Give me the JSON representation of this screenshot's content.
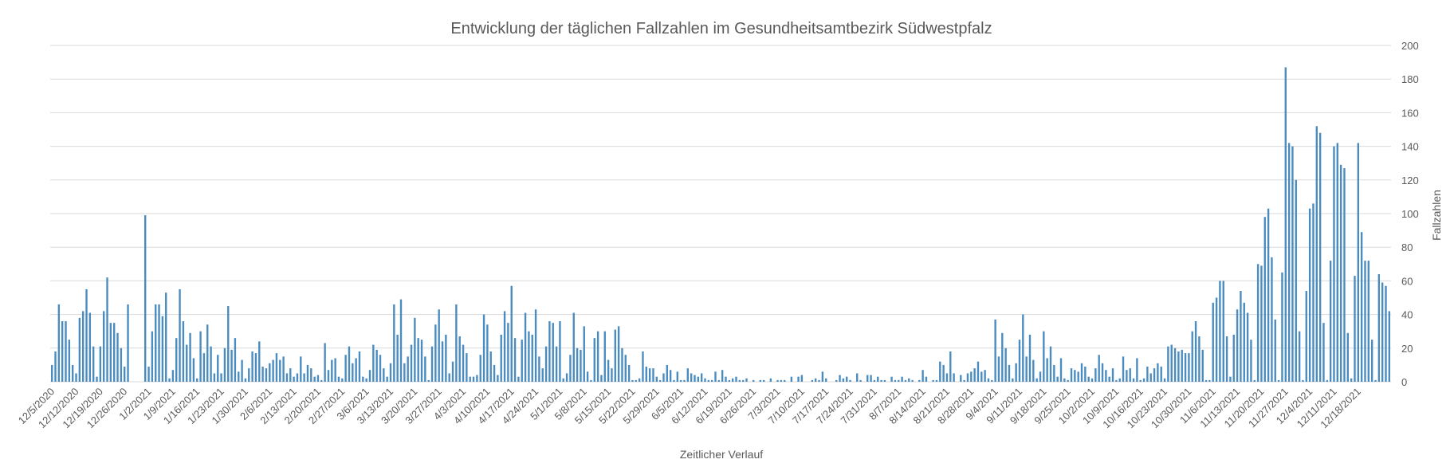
{
  "chart_data": {
    "type": "bar",
    "title": "Entwicklung der täglichen Fallzahlen im Gesundheitsamtbezirk Südwestpfalz",
    "xlabel": "Zeitlicher Verlauf",
    "ylabel": "Fallzahlen",
    "ylim": [
      0,
      200
    ],
    "yticks": [
      0,
      20,
      40,
      60,
      80,
      100,
      120,
      140,
      160,
      180,
      200
    ],
    "y_axis_side": "right",
    "grid": true,
    "bar_color": "#4a8cc0",
    "start_date": "12/5/2020",
    "x_tick_labels": [
      "12/5/2020",
      "12/12/2020",
      "12/19/2020",
      "12/26/2020",
      "1/2/2021",
      "1/9/2021",
      "1/16/2021",
      "1/23/2021",
      "1/30/2021",
      "2/6/2021",
      "2/13/2021",
      "2/20/2021",
      "2/27/2021",
      "3/6/2021",
      "3/13/2021",
      "3/20/2021",
      "3/27/2021",
      "4/3/2021",
      "4/10/2021",
      "4/17/2021",
      "4/24/2021",
      "5/1/2021",
      "5/8/2021",
      "5/15/2021",
      "5/22/2021",
      "5/29/2021",
      "6/5/2021",
      "6/12/2021",
      "6/19/2021",
      "6/26/2021",
      "7/3/2021",
      "7/10/2021",
      "7/17/2021",
      "7/24/2021",
      "7/31/2021",
      "8/7/2021",
      "8/14/2021",
      "8/21/2021",
      "8/28/2021",
      "9/4/2021",
      "9/11/2021",
      "9/18/2021",
      "9/25/2021",
      "10/2/2021",
      "10/9/2021",
      "10/16/2021",
      "10/23/2021",
      "10/30/2021",
      "11/6/2021",
      "11/13/2021",
      "11/20/2021",
      "11/27/2021",
      "12/4/2021",
      "12/11/2021",
      "12/18/2021"
    ],
    "values": [
      10,
      18,
      46,
      36,
      36,
      25,
      10,
      5,
      38,
      42,
      55,
      41,
      21,
      3,
      21,
      42,
      62,
      35,
      35,
      29,
      20,
      9,
      46,
      0,
      0,
      0,
      0,
      99,
      9,
      30,
      46,
      46,
      39,
      53,
      2,
      7,
      26,
      55,
      36,
      22,
      29,
      14,
      2,
      30,
      17,
      34,
      21,
      5,
      16,
      5,
      20,
      45,
      19,
      26,
      6,
      13,
      2,
      8,
      18,
      17,
      24,
      9,
      8,
      11,
      13,
      17,
      13,
      15,
      5,
      8,
      3,
      5,
      15,
      5,
      10,
      8,
      3,
      4,
      1,
      23,
      7,
      13,
      14,
      3,
      2,
      16,
      21,
      11,
      14,
      18,
      3,
      2,
      7,
      22,
      19,
      16,
      8,
      3,
      11,
      46,
      28,
      49,
      11,
      15,
      22,
      38,
      26,
      25,
      15,
      1,
      21,
      34,
      43,
      24,
      28,
      5,
      12,
      46,
      27,
      22,
      17,
      3,
      3,
      4,
      16,
      40,
      34,
      18,
      10,
      4,
      28,
      42,
      35,
      57,
      26,
      3,
      25,
      41,
      30,
      28,
      43,
      15,
      8,
      21,
      36,
      35,
      21,
      36,
      2,
      5,
      16,
      41,
      20,
      19,
      33,
      6,
      1,
      26,
      30,
      4,
      30,
      13,
      8,
      31,
      33,
      20,
      16,
      10,
      1,
      1,
      2,
      18,
      9,
      8,
      8,
      3,
      1,
      5,
      10,
      7,
      1,
      6,
      1,
      1,
      8,
      5,
      4,
      3,
      5,
      2,
      1,
      1,
      6,
      1,
      7,
      3,
      1,
      2,
      3,
      1,
      1,
      2,
      0,
      1,
      0,
      1,
      1,
      0,
      2,
      0,
      1,
      1,
      1,
      0,
      3,
      0,
      3,
      4,
      0,
      0,
      1,
      2,
      1,
      6,
      2,
      0,
      0,
      1,
      4,
      2,
      3,
      1,
      0,
      5,
      1,
      0,
      4,
      4,
      1,
      3,
      1,
      1,
      0,
      3,
      1,
      1,
      3,
      1,
      2,
      1,
      0,
      1,
      7,
      3,
      0,
      1,
      1,
      12,
      10,
      5,
      18,
      5,
      0,
      4,
      1,
      5,
      6,
      8,
      12,
      6,
      7,
      2,
      1,
      37,
      15,
      29,
      20,
      10,
      2,
      11,
      25,
      40,
      15,
      28,
      13,
      2,
      6,
      30,
      14,
      21,
      10,
      3,
      14,
      2,
      1,
      8,
      7,
      6,
      11,
      9,
      3,
      2,
      8,
      16,
      11,
      7,
      3,
      8,
      1,
      2,
      15,
      7,
      8,
      2,
      14,
      1,
      2,
      9,
      5,
      8,
      11,
      9,
      2,
      21,
      22,
      20,
      18,
      19,
      17,
      17,
      30,
      36,
      27,
      19,
      1,
      1,
      47,
      50,
      60,
      60,
      27,
      3,
      28,
      43,
      54,
      47,
      41,
      25,
      1,
      70,
      69,
      98,
      103,
      74,
      37,
      1,
      65,
      187,
      142,
      140,
      120,
      30,
      1,
      54,
      103,
      106,
      152,
      148,
      35,
      1,
      72,
      140,
      142,
      129,
      127,
      29,
      2,
      63,
      142,
      89,
      72,
      72,
      25,
      1,
      64,
      59,
      57,
      42
    ]
  }
}
